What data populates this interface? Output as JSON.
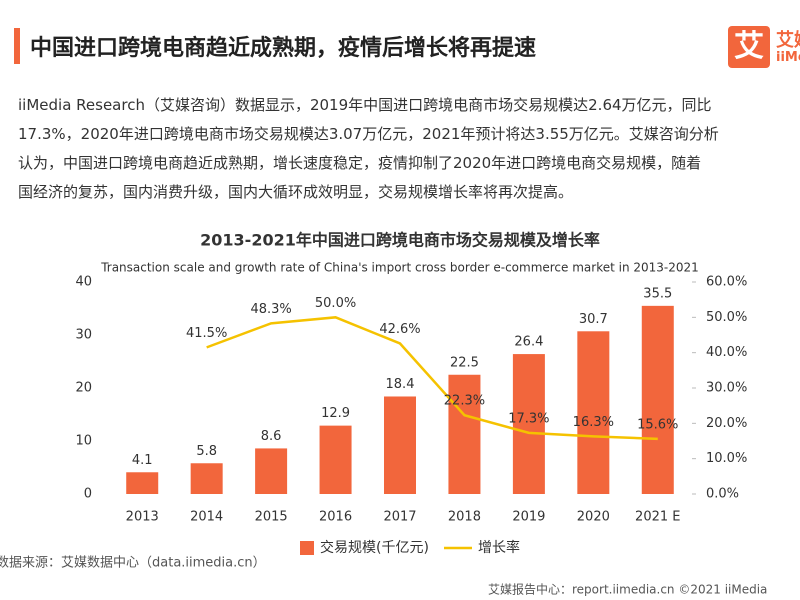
{
  "header": {
    "title": "中国进口跨境电商趋近成熟期，疫情后增长将再提速",
    "logo": "艾",
    "logo_side": [
      "艾媒",
      "iiMedia"
    ]
  },
  "paragraph": [
    "iiMedia Research（艾媒咨询）数据显示，2019年中国进口跨境电商市场交易规模达2.64万亿元，同比",
    "17.3%，2020年进口跨境电商市场交易规模达3.07万亿元，2021年预计将达3.55万亿元。艾媒咨询分析",
    "认为，中国进口跨境电商趋近成熟期，增长速度稳定，疫情抑制了2020年进口跨境电商交易规模，随着",
    "国经济的复苏，国内消费升级，国内大循环成效明显，交易规模增长率将再次提高。"
  ],
  "chart_data": {
    "type": "bar-line",
    "title": "2013-2021年中国进口跨境电商市场交易规模及增长率",
    "subtitle": "Transaction scale and growth rate of China's import cross border e-commerce market in 2013-2021",
    "categories": [
      "2013",
      "2014",
      "2015",
      "2016",
      "2017",
      "2018",
      "2019",
      "2020",
      "2021 E"
    ],
    "series": [
      {
        "name": "交易规模(千亿元)",
        "type": "bar",
        "color": "#f2663c",
        "values": [
          4.1,
          5.8,
          8.6,
          12.9,
          18.4,
          22.5,
          26.4,
          30.7,
          35.5
        ]
      },
      {
        "name": "增长率",
        "type": "line",
        "axis": "y2",
        "color": "#f5c200",
        "values": [
          null,
          41.5,
          48.3,
          50,
          42.6,
          22.3,
          17.3,
          16.3,
          15.6
        ],
        "value_labels": [
          null,
          "41.5%",
          "48.3%",
          "50.0%",
          "42.6%",
          "22.3%",
          "17.3%",
          "16.3%",
          "15.6%"
        ]
      }
    ],
    "ylim": [
      0,
      40
    ],
    "yticks": [
      0,
      10,
      20,
      30,
      40
    ],
    "y2lim": [
      0,
      60
    ],
    "y2ticks": [
      {
        "value": 0,
        "label": "0.0%"
      },
      {
        "value": 10,
        "label": "10.0%"
      },
      {
        "value": 20,
        "label": "20.0%"
      },
      {
        "value": 30,
        "label": "30.0%"
      },
      {
        "value": 40,
        "label": "40.0%"
      },
      {
        "value": 50,
        "label": "50.0%"
      },
      {
        "value": 60,
        "label": "60.0%"
      }
    ],
    "grid": false,
    "legend": "bottom"
  },
  "source": "数据来源：艾媒数据中心（data.iimedia.cn）",
  "footer": "艾媒报告中心：report.iimedia.cn  ©2021  iiMedia"
}
